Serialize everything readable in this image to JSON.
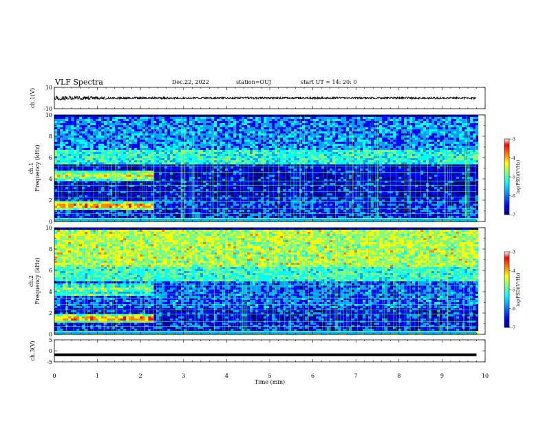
{
  "header": {
    "title": "VLF Spectra",
    "date": "Dec.22, 2022",
    "station": "station=OUJ",
    "start_time": "start  UT =   14: 20: 0"
  },
  "colormap": [
    "#000080",
    "#0000ff",
    "#00a0ff",
    "#00ffff",
    "#80ff80",
    "#ffff00",
    "#ff8000",
    "#ff0000",
    "#ffffff"
  ],
  "chart_data": [
    {
      "type": "line",
      "panel": "ch1-waveform",
      "ylabel": "ch.1(V)",
      "ylim": [
        -10,
        10
      ],
      "yticks": [
        "10",
        "-10"
      ],
      "xlim": [
        0,
        10
      ],
      "series_color": "#000000",
      "envelope": [
        [
          0,
          1.7
        ],
        [
          0.3,
          1.3
        ],
        [
          0.6,
          1.0
        ],
        [
          1.0,
          0.9
        ],
        [
          1.3,
          0.7
        ],
        [
          2.0,
          0.6
        ],
        [
          10,
          0.6
        ]
      ]
    },
    {
      "type": "heatmap",
      "panel": "ch1-spectrogram",
      "ylabel": "ch.1\nFrequency (kHz)",
      "ylabel_lines": [
        "ch.1",
        "Frequency (kHz)"
      ],
      "ylim": [
        0,
        10
      ],
      "yticks": [
        "0",
        "2",
        "4",
        "6",
        "8",
        "10"
      ],
      "xlim": [
        0,
        10
      ],
      "data_end_min": 9.8,
      "colorbar_label": "log(PSD)(V²/Hz)",
      "colorbar_ticks": [
        "-3",
        "-4",
        "-5",
        "-6",
        "-7"
      ],
      "bands": [
        {
          "f0": 0,
          "f1": 0.5,
          "level": 0.55
        },
        {
          "f0": 0.5,
          "f1": 2.3,
          "level": 0.2
        },
        {
          "f0": 2.3,
          "f1": 5.5,
          "level": 0.14
        },
        {
          "f0": 5.5,
          "f1": 6.8,
          "level": 0.45
        },
        {
          "f0": 6.8,
          "f1": 10,
          "level": 0.3
        }
      ],
      "early_features": [
        {
          "t1": 2.3,
          "f0": 1.2,
          "f1": 1.9,
          "level": 0.82
        },
        {
          "t1": 2.3,
          "f0": 4.0,
          "f1": 4.8,
          "level": 0.7
        }
      ],
      "harmonic_lines_khz": [
        0.3,
        0.75,
        1.2,
        1.9,
        2.3,
        2.8,
        3.4,
        3.8,
        4.6,
        5.2
      ]
    },
    {
      "type": "heatmap",
      "panel": "ch2-spectrogram",
      "ylabel": "ch.2\nFrequency (kHz)",
      "ylabel_lines": [
        "ch.2",
        "Frequency (kHz)"
      ],
      "ylim": [
        0,
        10
      ],
      "yticks": [
        "0",
        "2",
        "4",
        "6",
        "8",
        "10"
      ],
      "xlim": [
        0,
        10
      ],
      "data_end_min": 9.8,
      "colorbar_label": "log(PSD)(V²/Hz)",
      "colorbar_ticks": [
        "-3",
        "-4",
        "-5",
        "-6",
        "-7"
      ],
      "bands": [
        {
          "f0": 0,
          "f1": 0.5,
          "level": 0.55
        },
        {
          "f0": 0.5,
          "f1": 2.5,
          "level": 0.18
        },
        {
          "f0": 2.5,
          "f1": 5.0,
          "level": 0.25
        },
        {
          "f0": 5.0,
          "f1": 6.5,
          "level": 0.48
        },
        {
          "f0": 6.5,
          "f1": 10,
          "level": 0.62
        }
      ],
      "early_features": [
        {
          "t1": 2.3,
          "f0": 1.2,
          "f1": 1.9,
          "level": 0.82
        },
        {
          "t1": 2.3,
          "f0": 3.8,
          "f1": 4.8,
          "level": 0.6
        }
      ],
      "harmonic_lines_khz": [
        0.3,
        0.75,
        1.2,
        1.9,
        2.3,
        2.8,
        3.4,
        3.8,
        4.6,
        5.2
      ]
    },
    {
      "type": "line",
      "panel": "ch3-waveform",
      "ylabel": "ch.3(V)",
      "ylim": [
        -5,
        5
      ],
      "yticks": [
        "5",
        "0",
        "-5"
      ],
      "xlim": [
        0,
        10
      ],
      "series_color": "#000000",
      "constant_value": -1.8
    }
  ],
  "xaxis": {
    "label": "Time (min)",
    "ticks": [
      "0",
      "1",
      "2",
      "3",
      "4",
      "5",
      "6",
      "7",
      "8",
      "9",
      "10"
    ]
  }
}
